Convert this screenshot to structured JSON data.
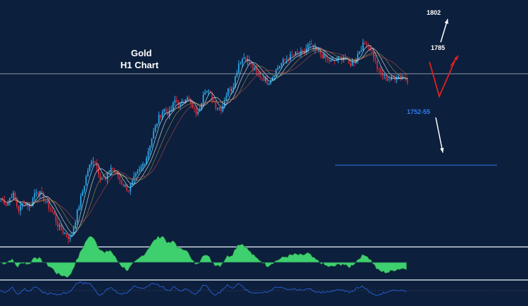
{
  "chart_data": {
    "type": "candlestick",
    "title": "Gold",
    "subtitle": "H1 Chart",
    "reference_price_level": 1785,
    "support_label": "1752-55",
    "support_level": 1753.5,
    "scenarios": [
      {
        "label": "1802",
        "direction": "up",
        "color": "#ffffff"
      },
      {
        "label": "1785",
        "direction": "down-then-up",
        "color": "#e02020"
      },
      {
        "label": "1752-55",
        "direction": "down",
        "color": "#ffffff"
      }
    ],
    "ylim": [
      1728,
      1808
    ],
    "price_path": [
      1742,
      1740,
      1744,
      1738,
      1741,
      1739,
      1745,
      1743,
      1740,
      1737,
      1732,
      1730,
      1728,
      1736,
      1744,
      1752,
      1756,
      1750,
      1748,
      1753,
      1750,
      1747,
      1745,
      1749,
      1752,
      1756,
      1763,
      1769,
      1773,
      1771,
      1776,
      1774,
      1778,
      1773,
      1771,
      1780,
      1778,
      1774,
      1773,
      1779,
      1781,
      1789,
      1791,
      1788,
      1785,
      1784,
      1782,
      1785,
      1788,
      1790,
      1791,
      1792,
      1792,
      1795,
      1793,
      1792,
      1790,
      1789,
      1790,
      1791,
      1788,
      1790,
      1794,
      1796,
      1792,
      1786,
      1784,
      1783,
      1784,
      1784,
      1783
    ],
    "indicator_panels": [
      {
        "name": "oscillator-histogram",
        "color": "#3ecf6e"
      },
      {
        "name": "momentum-line",
        "color": "#2a5fd8"
      }
    ],
    "grid": false,
    "colors": {
      "background": "#0c1f3c",
      "bull": "#2aa6e8",
      "bear": "#d02a3a",
      "ma": "#8fe3f0",
      "support": "#2f6fd8",
      "panel_border": "#9aa6b8"
    }
  }
}
